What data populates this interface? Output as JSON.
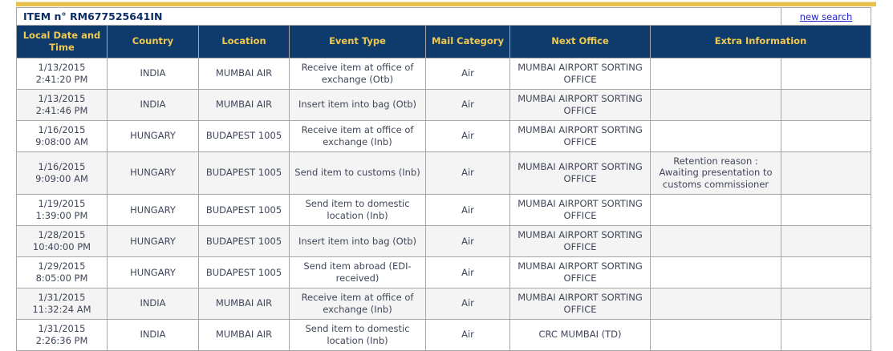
{
  "header": {
    "item_label": "ITEM n° RM677525641IN",
    "new_search_label": "new search"
  },
  "table": {
    "columns": [
      "Local Date and Time",
      "Country",
      "Location",
      "Event Type",
      "Mail Category",
      "Next Office",
      "Extra Information"
    ],
    "rows": [
      {
        "date": "1/13/2015",
        "time": "2:41:20 PM",
        "country": "INDIA",
        "location": "MUMBAI AIR",
        "event_type": "Receive item at office of exchange (Otb)",
        "mail_category": "Air",
        "next_office": "MUMBAI AIRPORT SORTING OFFICE",
        "extra_information": ""
      },
      {
        "date": "1/13/2015",
        "time": "2:41:46 PM",
        "country": "INDIA",
        "location": "MUMBAI AIR",
        "event_type": "Insert item into bag (Otb)",
        "mail_category": "Air",
        "next_office": "MUMBAI AIRPORT SORTING OFFICE",
        "extra_information": ""
      },
      {
        "date": "1/16/2015",
        "time": "9:08:00 AM",
        "country": "HUNGARY",
        "location": "BUDAPEST 1005",
        "event_type": "Receive item at office of exchange (Inb)",
        "mail_category": "Air",
        "next_office": "MUMBAI AIRPORT SORTING OFFICE",
        "extra_information": ""
      },
      {
        "date": "1/16/2015",
        "time": "9:09:00 AM",
        "country": "HUNGARY",
        "location": "BUDAPEST 1005",
        "event_type": "Send item to customs (Inb)",
        "mail_category": "Air",
        "next_office": "MUMBAI AIRPORT SORTING OFFICE",
        "extra_information": "Retention reason : Awaiting presentation to customs commissioner"
      },
      {
        "date": "1/19/2015",
        "time": "1:39:00 PM",
        "country": "HUNGARY",
        "location": "BUDAPEST 1005",
        "event_type": "Send item to domestic location (Inb)",
        "mail_category": "Air",
        "next_office": "MUMBAI AIRPORT SORTING OFFICE",
        "extra_information": ""
      },
      {
        "date": "1/28/2015",
        "time": "10:40:00 PM",
        "country": "HUNGARY",
        "location": "BUDAPEST 1005",
        "event_type": "Insert item into bag (Otb)",
        "mail_category": "Air",
        "next_office": "MUMBAI AIRPORT SORTING OFFICE",
        "extra_information": ""
      },
      {
        "date": "1/29/2015",
        "time": "8:05:00 PM",
        "country": "HUNGARY",
        "location": "BUDAPEST 1005",
        "event_type": "Send item abroad (EDI-received)",
        "mail_category": "Air",
        "next_office": "MUMBAI AIRPORT SORTING OFFICE",
        "extra_information": ""
      },
      {
        "date": "1/31/2015",
        "time": "11:32:24 AM",
        "country": "INDIA",
        "location": "MUMBAI AIR",
        "event_type": "Receive item at office of exchange (Inb)",
        "mail_category": "Air",
        "next_office": "MUMBAI AIRPORT SORTING OFFICE",
        "extra_information": ""
      },
      {
        "date": "1/31/2015",
        "time": "2:26:36 PM",
        "country": "INDIA",
        "location": "MUMBAI AIR",
        "event_type": "Send item to domestic location (Inb)",
        "mail_category": "Air",
        "next_office": "CRC MUMBAI (TD)",
        "extra_information": ""
      }
    ]
  },
  "colors": {
    "accent_gold_bar": "#e6c14d",
    "header_bg_navy": "#0e3a6c",
    "header_text_gold": "#f0ca4e",
    "title_text_navy": "#0c3064",
    "link_blue": "#2323cc",
    "row_alt_bg": "#f4f4f4",
    "cell_text": "#40475a",
    "grid_border": "#a6a6a6"
  }
}
